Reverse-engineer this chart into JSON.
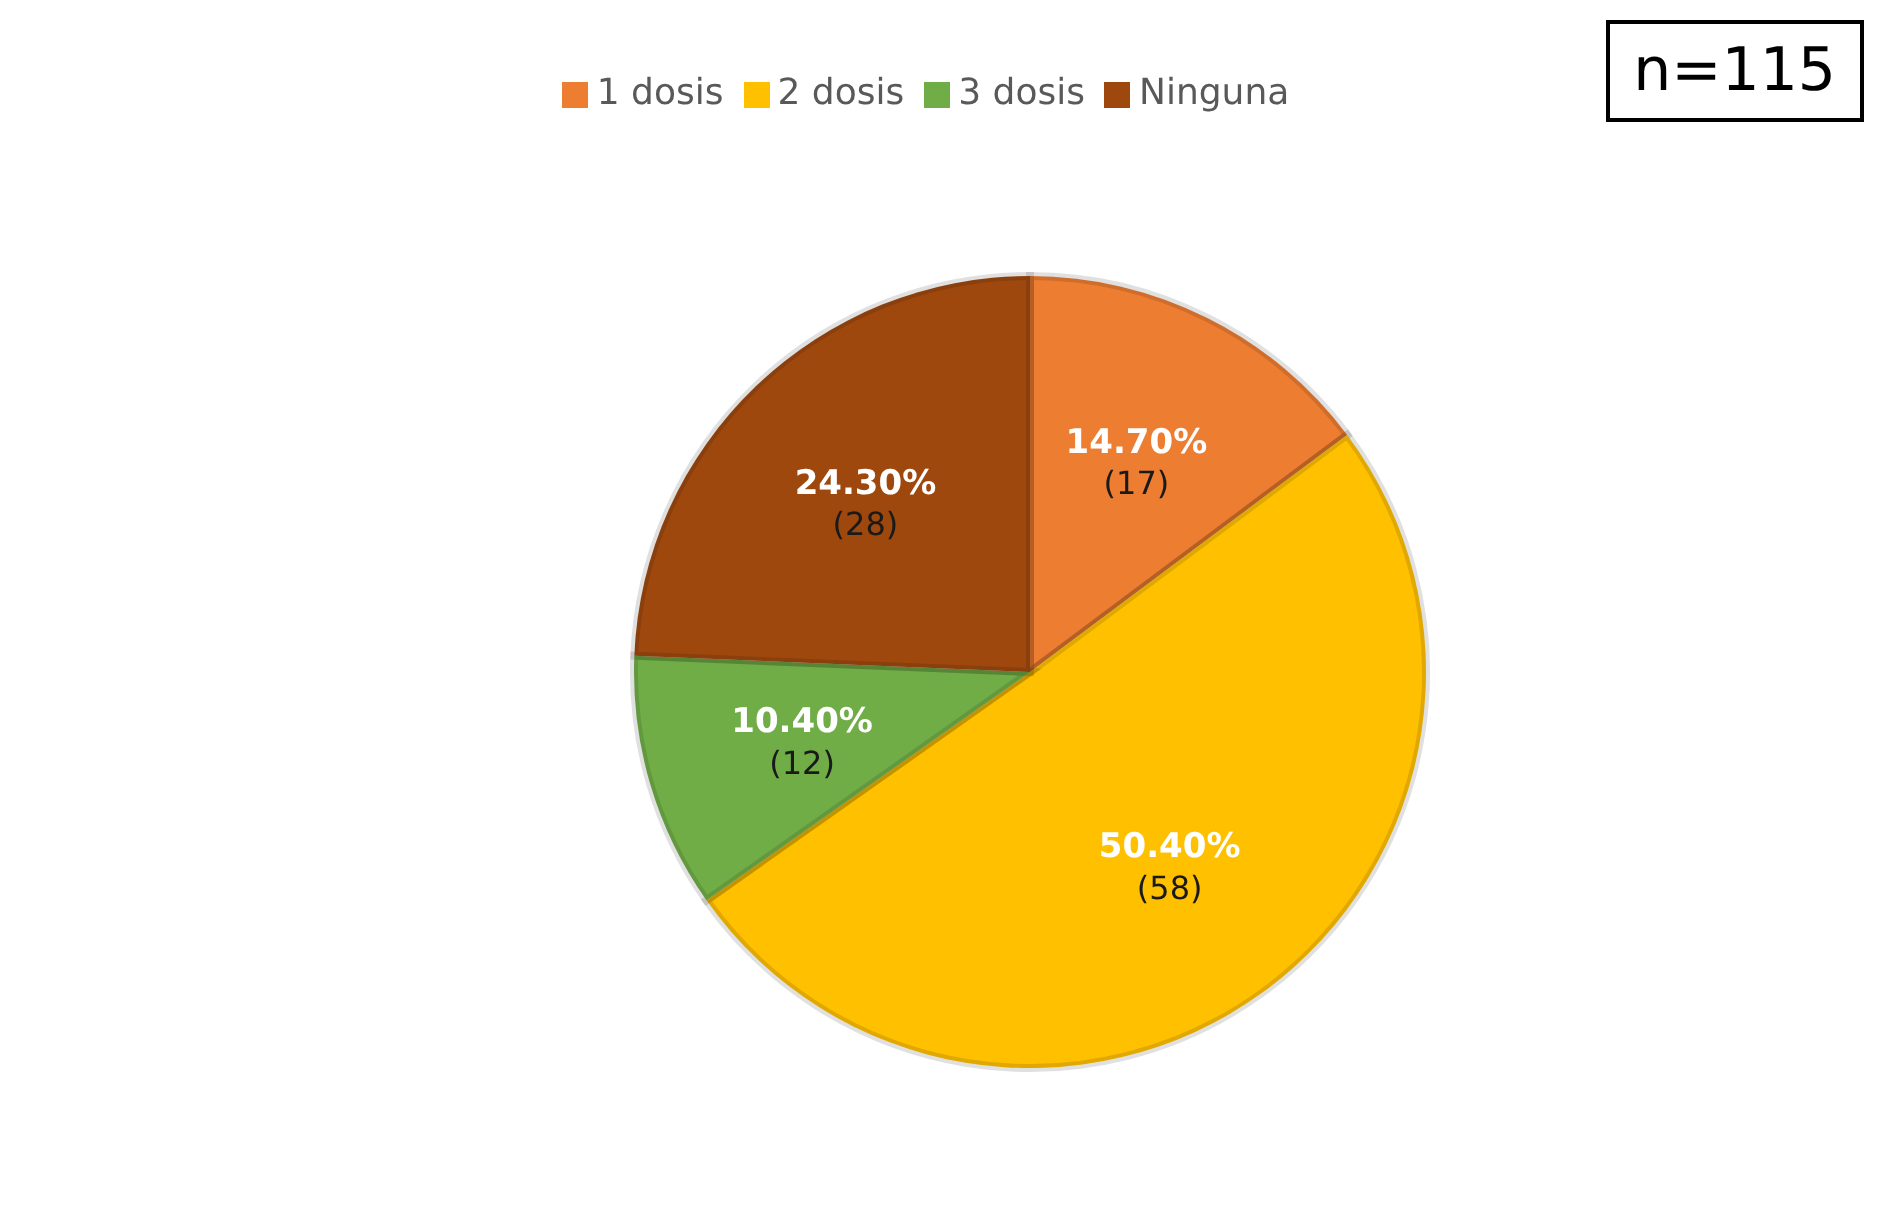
{
  "chart_data": {
    "type": "pie",
    "categories": [
      "1 dosis",
      "2 dosis",
      "3 dosis",
      "Ninguna"
    ],
    "values": [
      17,
      58,
      12,
      28
    ],
    "colors": [
      "#ed7d31",
      "#ffc000",
      "#70ad47",
      "#9e480e"
    ],
    "value_labels": [
      "14.70% (17)",
      "50.40% (58)",
      "10.40% (12)",
      "24.30% (28)"
    ],
    "legend": "top",
    "annotations": [
      "n=115"
    ]
  }
}
